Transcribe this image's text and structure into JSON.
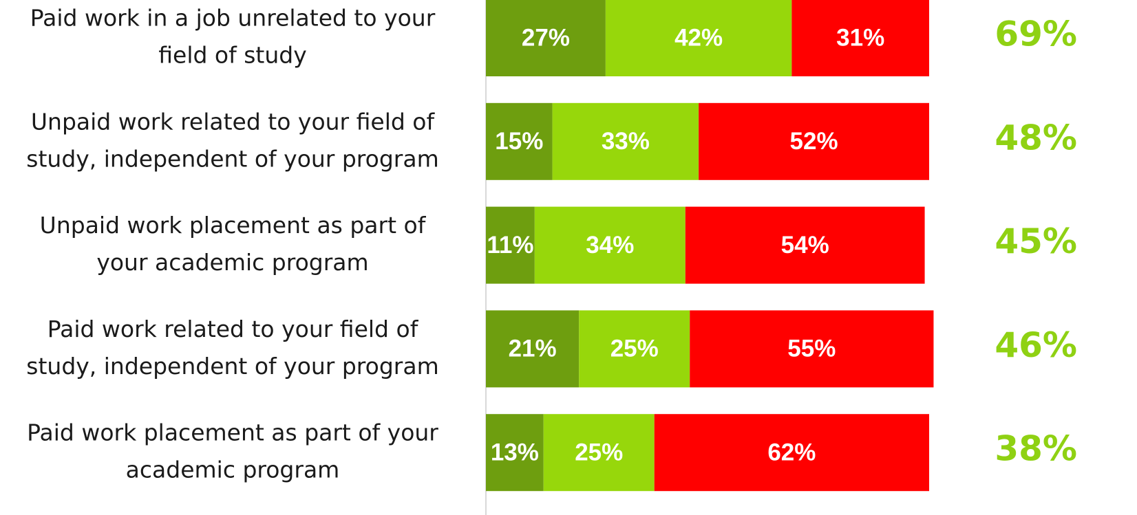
{
  "chart_data": {
    "type": "stacked-bar",
    "orientation": "horizontal",
    "categories": [
      [
        "Paid work in a job unrelated to your",
        "field of study"
      ],
      [
        "Unpaid work related to your field of",
        "study, independent of your program"
      ],
      [
        "Unpaid work placement as part of",
        "your academic program"
      ],
      [
        "Paid work related to your field of",
        "study, independent of your program"
      ],
      [
        "Paid work placement as part of your",
        "academic program"
      ]
    ],
    "series": [
      {
        "color": "#6e9e0f",
        "values": [
          27,
          15,
          11,
          21,
          13
        ],
        "value_labels": [
          "27%",
          "15%",
          "11%",
          "21%",
          "13%"
        ]
      },
      {
        "color": "#97d70b",
        "values": [
          42,
          33,
          34,
          25,
          25
        ],
        "value_labels": [
          "42%",
          "33%",
          "34%",
          "25%",
          "25%"
        ]
      },
      {
        "color": "#ff0000",
        "values": [
          31,
          52,
          54,
          55,
          62
        ],
        "value_labels": [
          "31%",
          "52%",
          "54%",
          "55%",
          "62%"
        ]
      }
    ],
    "totals": {
      "color": "#8fd113",
      "values": [
        69,
        48,
        45,
        46,
        38
      ],
      "value_labels": [
        "69%",
        "48%",
        "45%",
        "46%",
        "38%"
      ]
    },
    "xlim": [
      0,
      100
    ]
  }
}
